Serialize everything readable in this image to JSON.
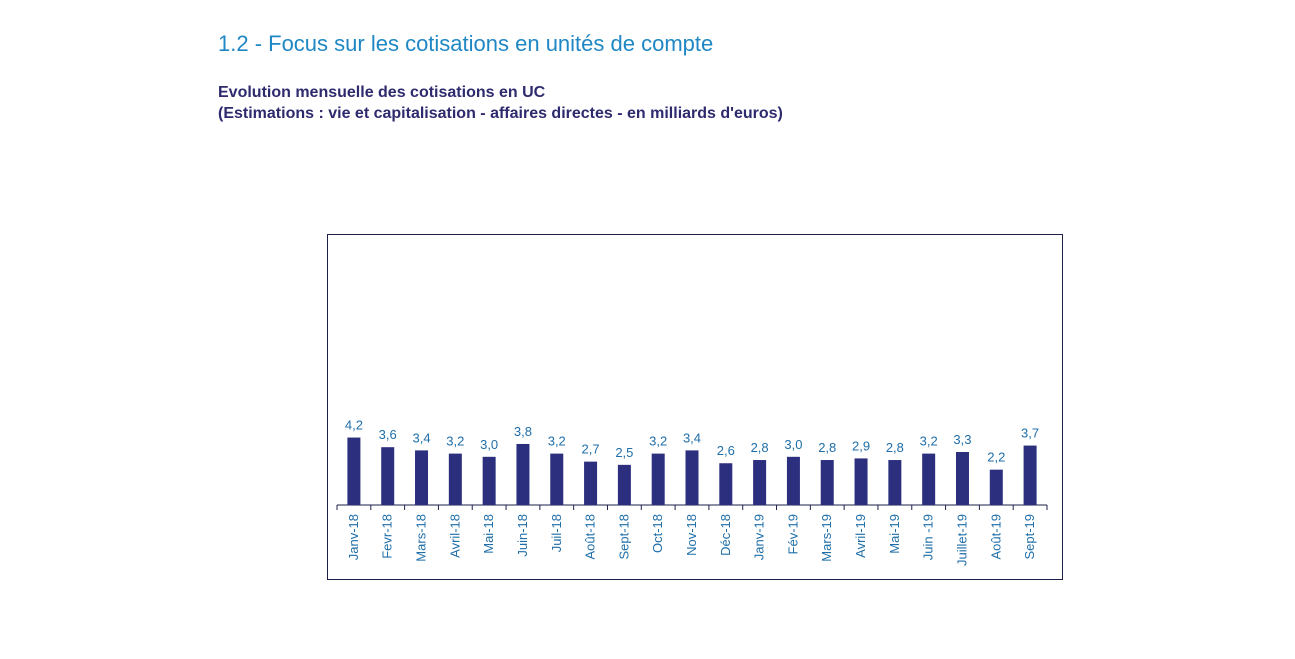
{
  "page": {
    "section_title": "1.2 - Focus sur les cotisations en unités de compte"
  },
  "colors": {
    "bar": "#2b2f7e",
    "label": "#1f6ea8",
    "axis": "#1b1f4a",
    "section_title": "#1f87c4",
    "chart_title": "#2e2a6e"
  },
  "chart_data": {
    "type": "bar",
    "title": "Evolution mensuelle des cotisations en UC",
    "subtitle": "(Estimations : vie et capitalisation - affaires directes - en milliards d'euros)",
    "xlabel": "",
    "ylabel": "",
    "categories": [
      "Janv-18",
      "Fevr-18",
      "Mars-18",
      "Avril-18",
      "Mai-18",
      "Juin-18",
      "Juil-18",
      "Août-18",
      "Sept-18",
      "Oct-18",
      "Nov-18",
      "Déc-18",
      "Janv-19",
      "Fév-19",
      "Mars-19",
      "Avril-19",
      "Mai-19",
      "Juin -19",
      "Juillet-19",
      "Août-19",
      "Sept-19"
    ],
    "values": [
      4.2,
      3.6,
      3.4,
      3.2,
      3.0,
      3.8,
      3.2,
      2.7,
      2.5,
      3.2,
      3.4,
      2.6,
      2.8,
      3.0,
      2.8,
      2.9,
      2.8,
      3.2,
      3.3,
      2.2,
      3.7
    ],
    "value_labels": [
      "4,2",
      "3,6",
      "3,4",
      "3,2",
      "3,0",
      "3,8",
      "3,2",
      "2,7",
      "2,5",
      "3,2",
      "3,4",
      "2,6",
      "2,8",
      "3,0",
      "2,8",
      "2,9",
      "2,8",
      "3,2",
      "3,3",
      "2,2",
      "3,7"
    ],
    "ylim": [
      0,
      16.5
    ],
    "grid": false,
    "legend": "none",
    "data_labels": true,
    "tick_label_rotation": "vertical"
  }
}
